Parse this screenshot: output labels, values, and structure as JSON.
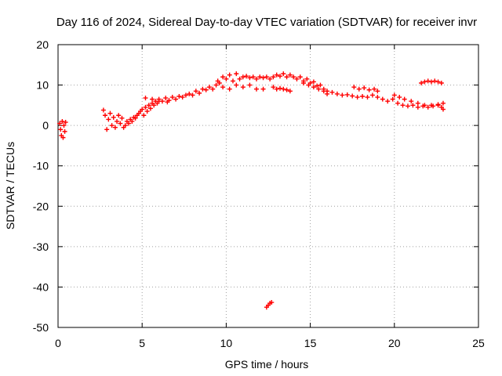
{
  "chart_data": {
    "type": "scatter",
    "title": "Day 116 of 2024, Sidereal Day-to-day VTEC variation (SDTVAR) for receiver invr",
    "xlabel": "GPS time / hours",
    "ylabel": "SDTVAR / TECUs",
    "xlim": [
      0,
      25
    ],
    "ylim": [
      -50,
      20
    ],
    "xticks": [
      0,
      5,
      10,
      15,
      20,
      25
    ],
    "yticks": [
      -50,
      -40,
      -30,
      -20,
      -10,
      0,
      10,
      20
    ],
    "grid": true,
    "marker": "+",
    "color": "#ff0000",
    "series": [
      {
        "name": "SDTVAR",
        "points": [
          [
            0.1,
            0.5
          ],
          [
            0.15,
            -1.0
          ],
          [
            0.2,
            -2.5
          ],
          [
            0.25,
            1.0
          ],
          [
            0.3,
            -3.0
          ],
          [
            0.35,
            0.0
          ],
          [
            0.4,
            -1.5
          ],
          [
            0.45,
            0.8
          ],
          [
            2.7,
            3.8
          ],
          [
            2.8,
            2.5
          ],
          [
            2.9,
            -1.0
          ],
          [
            3.0,
            1.5
          ],
          [
            3.1,
            3.0
          ],
          [
            3.2,
            0.0
          ],
          [
            3.3,
            2.0
          ],
          [
            3.4,
            -0.5
          ],
          [
            3.5,
            1.0
          ],
          [
            3.6,
            2.5
          ],
          [
            3.7,
            0.5
          ],
          [
            3.8,
            1.8
          ],
          [
            3.9,
            -0.5
          ],
          [
            4.0,
            0.0
          ],
          [
            4.1,
            1.0
          ],
          [
            4.2,
            0.5
          ],
          [
            4.3,
            1.5
          ],
          [
            4.4,
            1.0
          ],
          [
            4.5,
            2.0
          ],
          [
            4.6,
            1.8
          ],
          [
            4.7,
            2.5
          ],
          [
            4.8,
            3.0
          ],
          [
            4.9,
            3.5
          ],
          [
            5.0,
            4.0
          ],
          [
            5.1,
            2.5
          ],
          [
            5.2,
            4.5
          ],
          [
            5.3,
            3.5
          ],
          [
            5.4,
            5.0
          ],
          [
            5.5,
            4.2
          ],
          [
            5.6,
            5.5
          ],
          [
            5.7,
            5.0
          ],
          [
            5.8,
            6.0
          ],
          [
            5.9,
            5.5
          ],
          [
            6.0,
            6.5
          ],
          [
            6.2,
            6.0
          ],
          [
            6.4,
            6.8
          ],
          [
            6.6,
            6.2
          ],
          [
            6.8,
            7.0
          ],
          [
            7.0,
            6.5
          ],
          [
            7.2,
            7.2
          ],
          [
            5.2,
            6.8
          ],
          [
            5.6,
            6.5
          ],
          [
            6.0,
            6.0
          ],
          [
            6.5,
            5.8
          ],
          [
            7.4,
            7.0
          ],
          [
            7.6,
            7.5
          ],
          [
            7.8,
            7.8
          ],
          [
            8.0,
            7.5
          ],
          [
            8.2,
            8.5
          ],
          [
            8.4,
            8.0
          ],
          [
            8.6,
            9.0
          ],
          [
            8.8,
            8.8
          ],
          [
            9.0,
            9.5
          ],
          [
            9.2,
            9.0
          ],
          [
            9.4,
            10.0
          ],
          [
            9.5,
            11.0
          ],
          [
            9.6,
            10.5
          ],
          [
            9.8,
            12.0
          ],
          [
            10.0,
            11.5
          ],
          [
            10.2,
            12.5
          ],
          [
            10.4,
            11.0
          ],
          [
            10.6,
            12.8
          ],
          [
            10.8,
            11.5
          ],
          [
            11.0,
            12.0
          ],
          [
            9.8,
            9.5
          ],
          [
            10.2,
            9.0
          ],
          [
            10.6,
            10.0
          ],
          [
            11.0,
            9.5
          ],
          [
            11.4,
            10.0
          ],
          [
            11.8,
            9.0
          ],
          [
            12.2,
            9.0
          ],
          [
            11.2,
            12.2
          ],
          [
            11.4,
            11.8
          ],
          [
            11.6,
            12.0
          ],
          [
            11.8,
            11.5
          ],
          [
            12.0,
            12.0
          ],
          [
            12.2,
            11.8
          ],
          [
            12.4,
            12.0
          ],
          [
            12.6,
            11.5
          ],
          [
            12.8,
            9.5
          ],
          [
            13.0,
            9.0
          ],
          [
            13.2,
            9.2
          ],
          [
            13.4,
            9.0
          ],
          [
            13.6,
            8.8
          ],
          [
            13.8,
            8.5
          ],
          [
            12.8,
            12.0
          ],
          [
            13.0,
            12.5
          ],
          [
            13.2,
            12.2
          ],
          [
            13.4,
            12.8
          ],
          [
            13.6,
            12.0
          ],
          [
            13.8,
            12.5
          ],
          [
            14.0,
            12.0
          ],
          [
            14.2,
            11.5
          ],
          [
            14.4,
            12.0
          ],
          [
            14.6,
            11.0
          ],
          [
            14.8,
            11.5
          ],
          [
            15.0,
            10.5
          ],
          [
            15.2,
            10.8
          ],
          [
            15.4,
            9.8
          ],
          [
            15.6,
            10.0
          ],
          [
            15.8,
            9.0
          ],
          [
            14.6,
            10.5
          ],
          [
            14.9,
            10.0
          ],
          [
            15.2,
            9.5
          ],
          [
            15.5,
            9.0
          ],
          [
            15.8,
            8.5
          ],
          [
            16.0,
            7.8
          ],
          [
            16.0,
            8.5
          ],
          [
            16.3,
            8.2
          ],
          [
            16.6,
            7.8
          ],
          [
            16.9,
            7.5
          ],
          [
            17.2,
            7.6
          ],
          [
            17.5,
            7.3
          ],
          [
            17.8,
            7.0
          ],
          [
            18.1,
            7.2
          ],
          [
            18.4,
            7.0
          ],
          [
            18.7,
            7.5
          ],
          [
            19.0,
            7.0
          ],
          [
            19.3,
            6.5
          ],
          [
            17.6,
            9.5
          ],
          [
            17.9,
            9.0
          ],
          [
            18.2,
            9.3
          ],
          [
            18.5,
            8.8
          ],
          [
            18.8,
            9.0
          ],
          [
            19.0,
            8.5
          ],
          [
            19.6,
            6.0
          ],
          [
            19.9,
            6.5
          ],
          [
            20.2,
            5.5
          ],
          [
            20.5,
            5.0
          ],
          [
            20.8,
            4.8
          ],
          [
            21.1,
            5.0
          ],
          [
            21.4,
            4.5
          ],
          [
            21.7,
            4.8
          ],
          [
            22.0,
            4.5
          ],
          [
            22.3,
            4.8
          ],
          [
            22.6,
            5.0
          ],
          [
            22.9,
            5.5
          ],
          [
            20.0,
            7.5
          ],
          [
            20.3,
            7.0
          ],
          [
            20.6,
            6.5
          ],
          [
            21.0,
            6.0
          ],
          [
            21.4,
            5.5
          ],
          [
            21.8,
            5.0
          ],
          [
            22.2,
            5.0
          ],
          [
            22.6,
            5.2
          ],
          [
            22.8,
            4.5
          ],
          [
            22.9,
            4.0
          ],
          [
            21.6,
            10.5
          ],
          [
            21.8,
            10.8
          ],
          [
            22.0,
            11.0
          ],
          [
            22.2,
            10.8
          ],
          [
            22.4,
            11.0
          ],
          [
            22.6,
            10.8
          ],
          [
            22.8,
            10.5
          ],
          [
            12.4,
            -45.0
          ],
          [
            12.5,
            -44.5
          ],
          [
            12.6,
            -44.0
          ],
          [
            12.7,
            -43.8
          ]
        ]
      }
    ]
  }
}
